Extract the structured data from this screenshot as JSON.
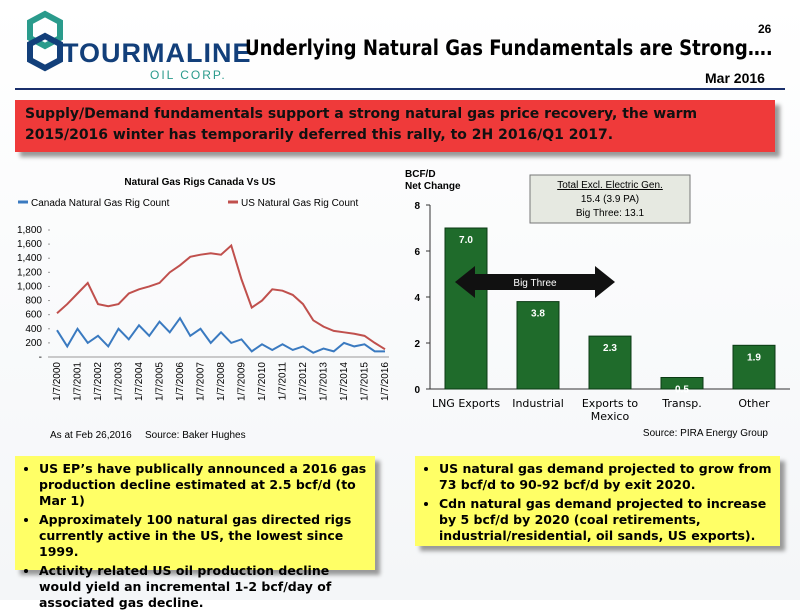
{
  "header": {
    "logo": "TOURMALINE",
    "logo_sub": "OIL CORP.",
    "page": "26",
    "title": "Underlying Natural Gas Fundamentals are Strong….",
    "date": "Mar 2016"
  },
  "banner": "Supply/Demand fundamentals support a strong natural gas price recovery, the warm 2015/2016 winter has temporarily deferred this rally, to 2H 2016/Q1 2017.",
  "chart_data": [
    {
      "type": "line",
      "title": "Natural Gas Rigs Canada Vs US",
      "categories": [
        "1/7/2000",
        null,
        "1/7/2001",
        null,
        "1/7/2002",
        null,
        "1/7/2003",
        null,
        "1/7/2004",
        null,
        "1/7/2005",
        null,
        "1/7/2006",
        null,
        "1/7/2007",
        null,
        "1/7/2008",
        null,
        "1/7/2009",
        null,
        "1/7/2010",
        null,
        "1/7/2011",
        null,
        "1/7/2012",
        null,
        "1/7/2013",
        null,
        "1/7/2014",
        null,
        "1/7/2015",
        null,
        "1/7/2016"
      ],
      "series": [
        {
          "name": "Canada Natural Gas Rig Count",
          "color": "#3a7ac0",
          "values": [
            380,
            150,
            400,
            200,
            300,
            150,
            400,
            250,
            450,
            300,
            500,
            350,
            550,
            300,
            400,
            200,
            350,
            200,
            250,
            80,
            180,
            100,
            180,
            100,
            150,
            60,
            120,
            80,
            200,
            150,
            180,
            80,
            80
          ]
        },
        {
          "name": "US Natural Gas Rig Count",
          "color": "#c0504d",
          "values": [
            620,
            750,
            900,
            1050,
            750,
            720,
            750,
            900,
            960,
            1000,
            1050,
            1200,
            1300,
            1420,
            1450,
            1470,
            1450,
            1580,
            1100,
            700,
            800,
            960,
            940,
            880,
            750,
            520,
            430,
            370,
            350,
            330,
            300,
            200,
            110
          ]
        }
      ],
      "ylim": [
        0,
        1800
      ],
      "yticks": [
        {
          "value": 0,
          "label": "-"
        },
        200,
        400,
        600,
        800,
        {
          "value": 1000,
          "label": "1,000"
        },
        {
          "value": 1200,
          "label": "1,200"
        },
        {
          "value": 1400,
          "label": "1,400"
        },
        {
          "value": 1600,
          "label": "1,600"
        },
        {
          "value": 1800,
          "label": "1,800"
        }
      ],
      "legend": "top",
      "notes": [
        "As at Feb 26,2016",
        "Source: Baker Hughes"
      ]
    },
    {
      "type": "bar",
      "ylabel": [
        "BCF/D",
        "Net Change"
      ],
      "categories": [
        "LNG Exports",
        "Industrial",
        "Exports to Mexico",
        "Transp.",
        "Other"
      ],
      "values": [
        7.0,
        3.8,
        2.3,
        0.5,
        1.9
      ],
      "value_labels": [
        "7.0",
        "3.8",
        "2.3",
        "0.5",
        "1.9"
      ],
      "color": "#1f6b2b",
      "ylim": [
        0,
        8
      ],
      "yticks": [
        0,
        2,
        4,
        6,
        8
      ],
      "annotations": [
        "Total Excl. Electric Gen.",
        "15.4 (3.9 PA)",
        "Big Three: 13.1"
      ],
      "arrow_label": "Big Three",
      "source": "Source: PIRA Energy Group"
    }
  ],
  "bullets_left": [
    "US EP’s have publically announced a 2016 gas production decline estimated at 2.5 bcf/d (to Mar 1)",
    "Approximately 100 natural gas directed rigs currently active in the US, the lowest since 1999.",
    "Activity related US oil production decline would yield an incremental 1-2 bcf/day of associated gas decline."
  ],
  "bullets_right": [
    "US natural gas demand projected to grow from 73 bcf/d to 90-92 bcf/d by exit 2020.",
    "Cdn natural gas demand projected to increase by 5 bcf/d by 2020 (coal retirements, industrial/residential, oil sands, US exports)."
  ]
}
